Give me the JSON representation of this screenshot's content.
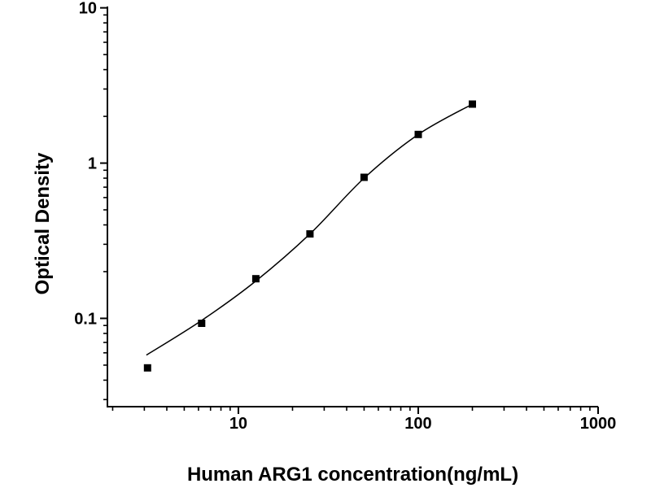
{
  "chart_data": {
    "type": "scatter",
    "title": "",
    "xlabel": "Human ARG1 concentration(ng/mL)",
    "ylabel": "Optical Density",
    "x_scale": "log",
    "y_scale": "log",
    "xlim": [
      1.87,
      1000
    ],
    "ylim": [
      0.027,
      10.2
    ],
    "x_major_ticks": [
      10,
      100,
      1000
    ],
    "x_tick_labels": [
      "10",
      "100",
      "1000"
    ],
    "y_major_ticks": [
      0.1,
      1,
      10
    ],
    "y_tick_labels": [
      "0.1",
      "1",
      "10"
    ],
    "grid": false,
    "legend": null,
    "marker": "filled-square",
    "colors": {
      "marker": "#000000",
      "line": "#000000",
      "axis": "#000000",
      "background": "#ffffff",
      "text": "#000000"
    },
    "points": [
      {
        "x": 3.125,
        "y": 0.048
      },
      {
        "x": 6.25,
        "y": 0.093
      },
      {
        "x": 12.5,
        "y": 0.18
      },
      {
        "x": 25,
        "y": 0.35
      },
      {
        "x": 50,
        "y": 0.81
      },
      {
        "x": 100,
        "y": 1.53
      },
      {
        "x": 200,
        "y": 2.4
      }
    ],
    "fit_curve": [
      {
        "x": 3.08,
        "y": 0.058
      },
      {
        "x": 6.25,
        "y": 0.097
      },
      {
        "x": 12.5,
        "y": 0.174
      },
      {
        "x": 25,
        "y": 0.35
      },
      {
        "x": 50,
        "y": 0.8
      },
      {
        "x": 100,
        "y": 1.53
      },
      {
        "x": 200,
        "y": 2.4
      }
    ]
  }
}
